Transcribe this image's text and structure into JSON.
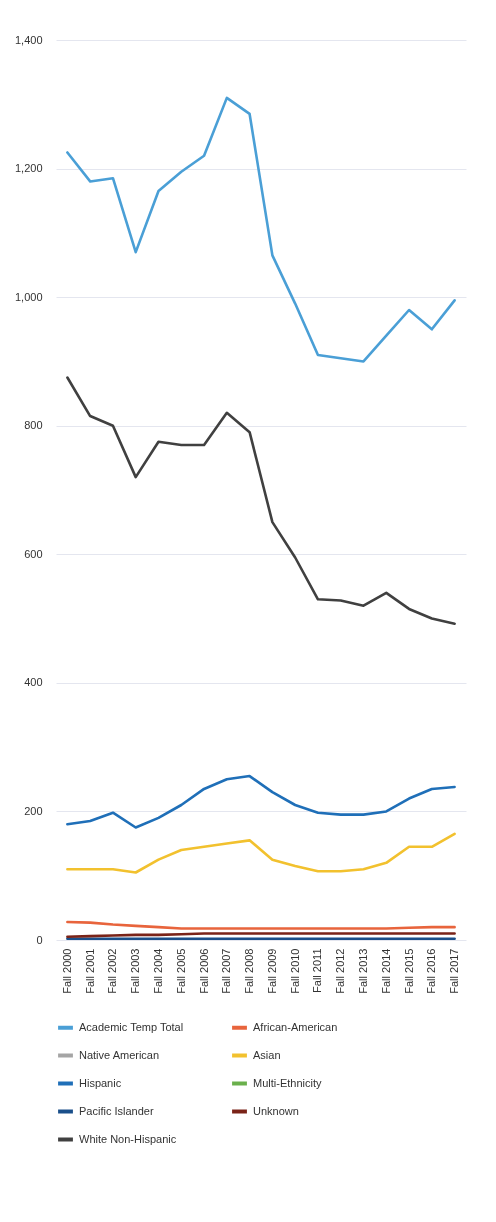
{
  "chart_data": {
    "type": "line",
    "categories": [
      "Fall 2000",
      "Fall 2001",
      "Fall 2002",
      "Fall 2003",
      "Fall 2004",
      "Fall 2005",
      "Fall 2006",
      "Fall 2007",
      "Fall 2008",
      "Fall 2009",
      "Fall 2010",
      "Fall 2011",
      "Fall 2012",
      "Fall 2013",
      "Fall 2014",
      "Fall 2015",
      "Fall 2016",
      "Fall 2017"
    ],
    "series": [
      {
        "name": "Academic Temp Total",
        "color": "#4a9fd6",
        "values": [
          1225,
          1180,
          1185,
          1070,
          1165,
          1195,
          1220,
          1310,
          1285,
          1065,
          990,
          910,
          905,
          900,
          940,
          980,
          950,
          995
        ]
      },
      {
        "name": "African-American",
        "color": "#e8643c",
        "values": [
          28,
          27,
          24,
          22,
          20,
          18,
          18,
          18,
          18,
          18,
          18,
          18,
          18,
          18,
          18,
          19,
          20,
          20
        ]
      },
      {
        "name": "Native American",
        "color": "#a5a5a5",
        "values": [
          null,
          null,
          null,
          null,
          null,
          null,
          null,
          null,
          null,
          null,
          null,
          null,
          null,
          null,
          null,
          null,
          null,
          null
        ]
      },
      {
        "name": "Asian",
        "color": "#f2c12e",
        "values": [
          110,
          110,
          110,
          105,
          125,
          140,
          145,
          150,
          155,
          125,
          115,
          107,
          107,
          110,
          120,
          145,
          145,
          165
        ]
      },
      {
        "name": "Hispanic",
        "color": "#1f6fb8",
        "values": [
          180,
          185,
          198,
          175,
          190,
          210,
          235,
          250,
          255,
          230,
          210,
          198,
          195,
          195,
          200,
          220,
          235,
          238
        ]
      },
      {
        "name": "Multi-Ethnicity",
        "color": "#6ab04c",
        "values": [
          null,
          null,
          null,
          null,
          null,
          null,
          null,
          null,
          null,
          null,
          null,
          null,
          null,
          null,
          null,
          null,
          null,
          null
        ]
      },
      {
        "name": "Pacific Islander",
        "color": "#1a4f8a",
        "values": [
          2,
          2,
          2,
          2,
          2,
          2,
          2,
          2,
          2,
          2,
          2,
          2,
          2,
          2,
          2,
          2,
          2,
          2
        ]
      },
      {
        "name": "Unknown",
        "color": "#7a2318",
        "values": [
          5,
          6,
          7,
          8,
          8,
          9,
          10,
          10,
          10,
          10,
          10,
          10,
          10,
          10,
          10,
          10,
          10,
          10
        ]
      },
      {
        "name": "White Non-Hispanic",
        "color": "#404040",
        "values": [
          875,
          815,
          800,
          720,
          775,
          770,
          770,
          820,
          790,
          650,
          595,
          530,
          528,
          520,
          540,
          515,
          500,
          492
        ]
      }
    ],
    "ylim": [
      0,
      1400
    ],
    "yticks": [
      0,
      200,
      400,
      600,
      800,
      {
        "value": 1000,
        "label": "1,000"
      },
      {
        "value": 1200,
        "label": "1,200"
      },
      {
        "value": 1400,
        "label": "1,400"
      }
    ],
    "grid": "y",
    "legend": "bottom",
    "marker": "none",
    "line_style": "solid"
  }
}
